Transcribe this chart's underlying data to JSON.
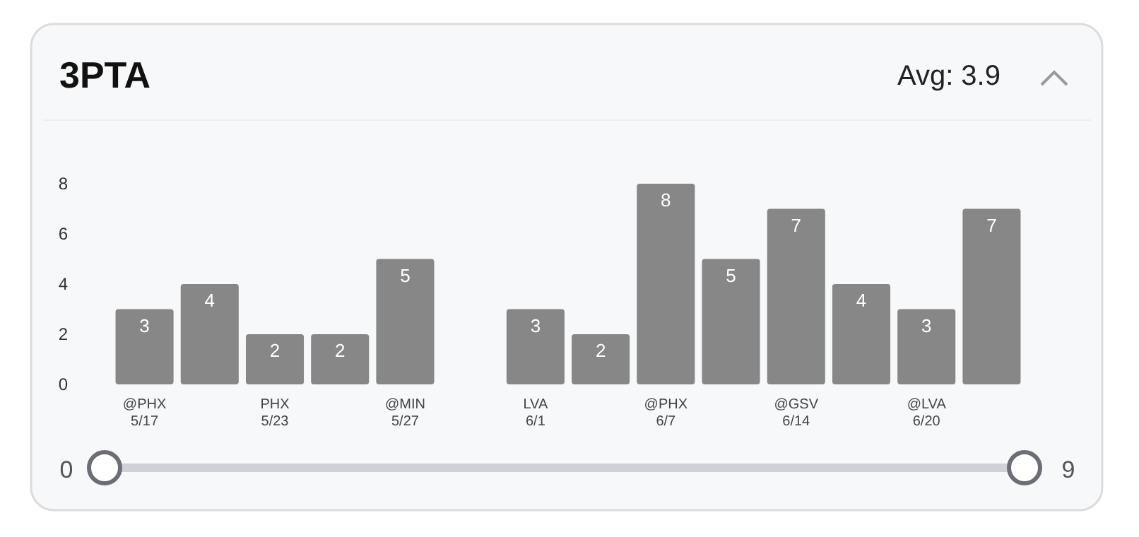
{
  "chart_data": {
    "type": "bar",
    "title": "3PTA",
    "subtitle": "Avg: 3.9",
    "categories": [
      "@PHX\n5/17",
      null,
      "PHX\n5/23",
      null,
      "@MIN\n5/27",
      null,
      "LVA\n6/1",
      null,
      "@PHX\n6/7",
      null,
      "@GSV\n6/14",
      null,
      "@LVA\n6/20",
      null
    ],
    "values": [
      3,
      4,
      2,
      2,
      5,
      null,
      3,
      2,
      8,
      5,
      7,
      4,
      3,
      7
    ],
    "color": "#878787",
    "ylim": [
      0,
      8
    ],
    "yticks": [
      0,
      2,
      4,
      6,
      8
    ],
    "data_labels": true,
    "grid": false,
    "annotations": [
      "0",
      "9"
    ]
  }
}
